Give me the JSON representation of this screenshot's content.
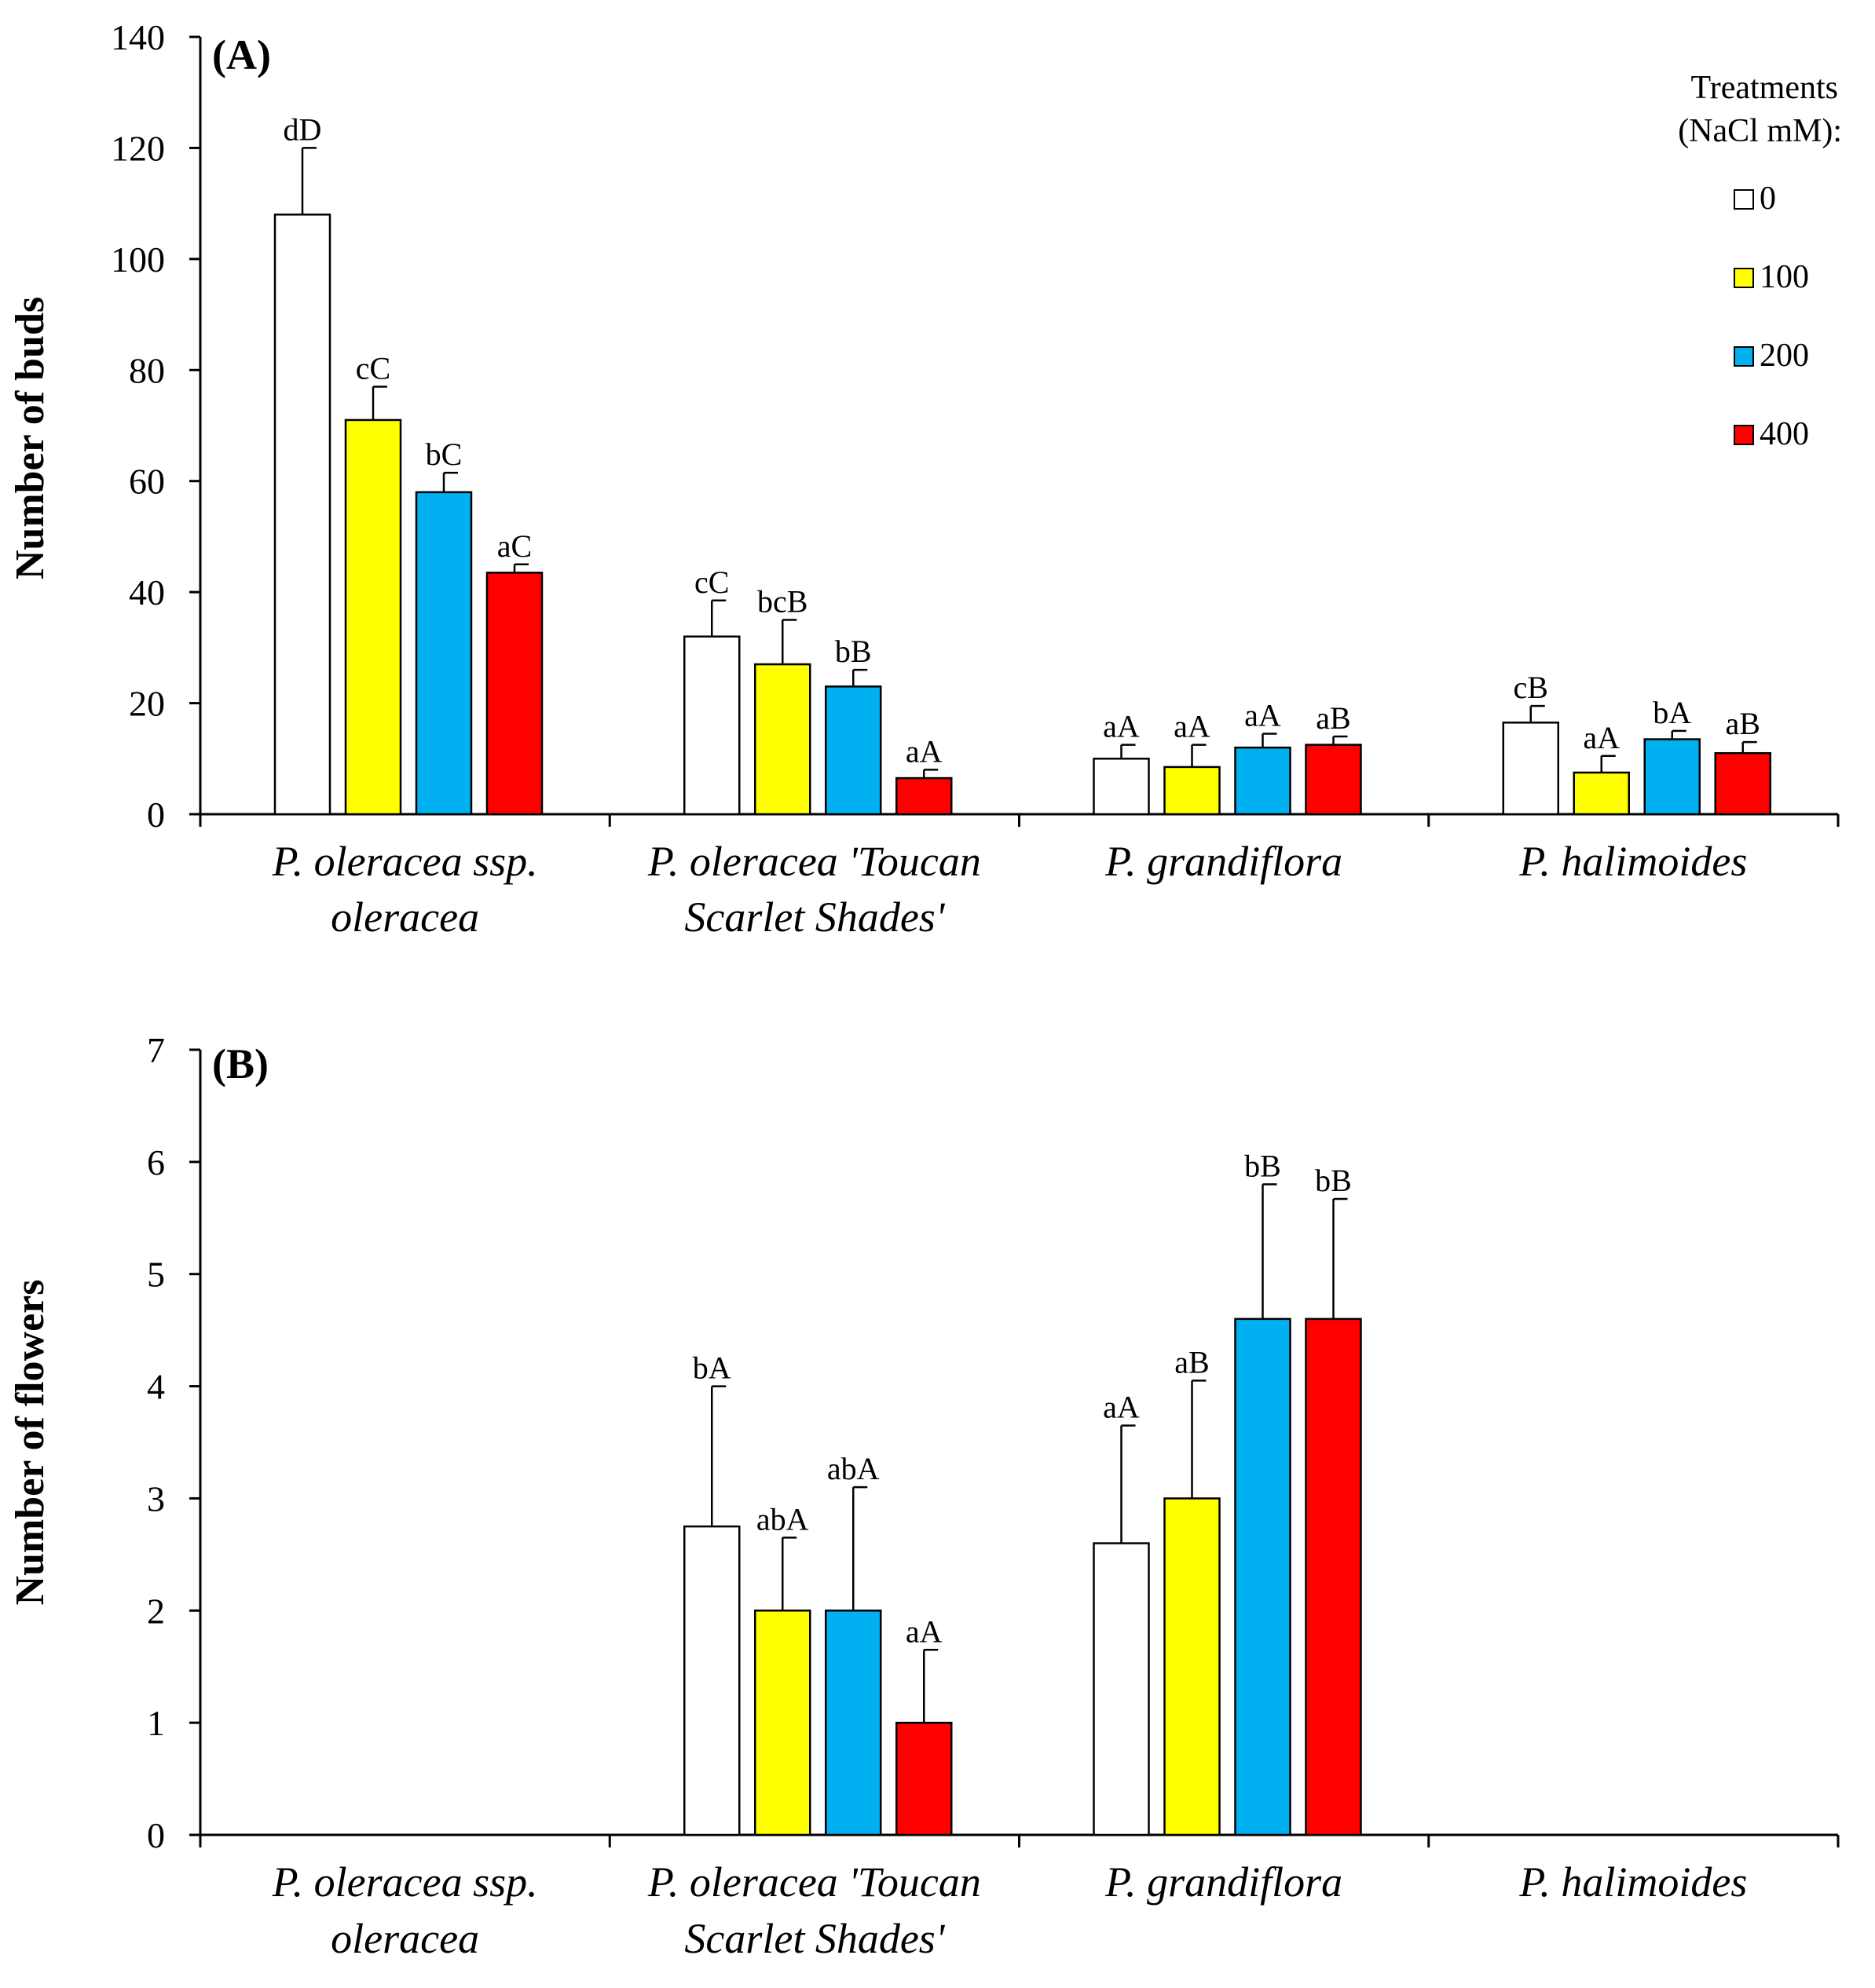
{
  "chart_data": [
    {
      "type": "bar",
      "panel_label": "(A)",
      "ylabel": "Number of buds",
      "ylim": [
        0,
        140
      ],
      "yticks": [
        0,
        20,
        40,
        60,
        80,
        100,
        120,
        140
      ],
      "categories": [
        [
          "P. oleracea ssp.",
          "oleracea"
        ],
        [
          "P. oleracea 'Toucan",
          "Scarlet Shades'"
        ],
        [
          "P. grandiflora"
        ],
        [
          "P. halimoides"
        ]
      ],
      "series": [
        {
          "name": "0",
          "color": "#ffffff",
          "values": [
            108,
            32,
            10,
            16.5
          ],
          "errors": [
            12,
            6.5,
            2.5,
            3
          ],
          "labels": [
            "dD",
            "cC",
            "aA",
            "cB"
          ]
        },
        {
          "name": "100",
          "color": "#ffff00",
          "values": [
            71,
            27,
            8.5,
            7.5
          ],
          "errors": [
            6,
            8,
            4,
            3
          ],
          "labels": [
            "cC",
            "bcB",
            "aA",
            "aA"
          ]
        },
        {
          "name": "200",
          "color": "#00b0f0",
          "values": [
            58,
            23,
            12,
            13.5
          ],
          "errors": [
            3.5,
            3,
            2.5,
            1.5
          ],
          "labels": [
            "bC",
            "bB",
            "aA",
            "bA"
          ]
        },
        {
          "name": "400",
          "color": "#ff0000",
          "values": [
            43.5,
            6.5,
            12.5,
            11
          ],
          "errors": [
            1.5,
            1.5,
            1.5,
            2
          ],
          "labels": [
            "aC",
            "aA",
            "aB",
            "aB"
          ]
        }
      ],
      "legend": {
        "title_line1": "Treatments",
        "title_line2": "(NaCl mM):",
        "placement": "top-right"
      }
    },
    {
      "type": "bar",
      "panel_label": "(B)",
      "ylabel": "Number of flowers",
      "ylim": [
        0,
        7
      ],
      "yticks": [
        0,
        1,
        2,
        3,
        4,
        5,
        6,
        7
      ],
      "categories": [
        [
          "P. oleracea ssp.",
          "oleracea"
        ],
        [
          "P. oleracea 'Toucan",
          "Scarlet Shades'"
        ],
        [
          "P. grandiflora"
        ],
        [
          "P. halimoides"
        ]
      ],
      "series": [
        {
          "name": "0",
          "color": "#ffffff",
          "values": [
            null,
            2.75,
            2.6,
            null
          ],
          "errors": [
            null,
            1.25,
            1.05,
            null
          ],
          "labels": [
            null,
            "bA",
            "aA",
            null
          ]
        },
        {
          "name": "100",
          "color": "#ffff00",
          "values": [
            null,
            2.0,
            3.0,
            null
          ],
          "errors": [
            null,
            0.65,
            1.05,
            null
          ],
          "labels": [
            null,
            "abA",
            "aB",
            null
          ]
        },
        {
          "name": "200",
          "color": "#00b0f0",
          "values": [
            null,
            2.0,
            4.6,
            null
          ],
          "errors": [
            null,
            1.1,
            1.2,
            null
          ],
          "labels": [
            null,
            "abA",
            "bB",
            null
          ]
        },
        {
          "name": "400",
          "color": "#ff0000",
          "values": [
            null,
            1.0,
            4.6,
            null
          ],
          "errors": [
            null,
            0.65,
            1.07,
            null
          ],
          "labels": [
            null,
            "aA",
            "bB",
            null
          ]
        }
      ]
    }
  ]
}
